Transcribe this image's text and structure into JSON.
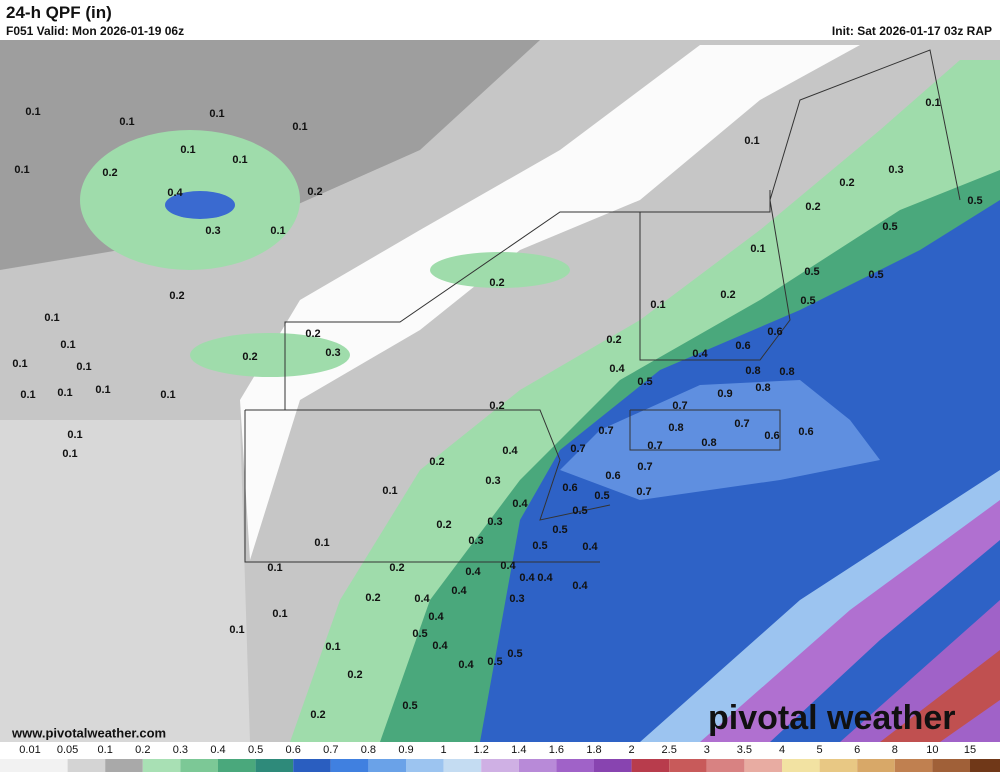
{
  "header": {
    "title": "24-h QPF (in)",
    "valid": "F051 Valid: Mon 2026-01-19 06z",
    "init": "Init: Sat 2026-01-17 03z RAP"
  },
  "website": "www.pivotalweather.com",
  "logo": "pivotal weather",
  "map_labels": [
    0.1,
    0.1,
    0.1,
    0.1,
    0.1,
    0.1,
    0.1,
    0.2,
    0.4,
    0.2,
    0.3,
    0.1,
    0.2,
    0.1,
    0.1,
    0.1,
    0.1,
    0.1,
    0.1,
    0.1,
    0.1,
    0.2,
    0.2,
    0.3,
    0.2,
    0.1,
    0.1,
    0.1,
    0.1,
    0.2,
    0.3,
    0.2,
    0.5,
    0.5,
    0.1,
    0.5,
    0.5,
    0.2,
    0.1,
    0.5,
    0.6,
    0.2,
    0.6,
    0.4,
    0.4,
    0.8,
    0.8,
    0.5,
    0.8,
    0.9,
    0.2,
    0.7,
    0.7,
    0.8,
    0.7,
    0.7,
    0.8,
    0.7,
    0.6,
    0.6,
    0.4,
    0.2,
    0.7,
    0.6,
    0.6,
    0.3,
    0.1,
    0.5,
    0.4,
    0.5,
    0.7,
    0.2,
    0.3,
    0.3,
    0.5,
    0.1,
    0.5,
    0.4,
    0.1,
    0.2,
    0.4,
    0.4,
    0.4,
    0.4,
    0.4,
    0.2,
    0.4,
    0.4,
    0.3,
    0.1,
    0.4,
    0.1,
    0.5,
    0.4,
    0.1,
    0.5,
    0.5,
    0.4,
    0.2,
    0.5,
    0.2
  ],
  "colorbar": {
    "ticks": [
      0.01,
      0.05,
      0.1,
      0.2,
      0.3,
      0.4,
      0.5,
      0.6,
      0.7,
      0.8,
      0.9,
      1,
      1.2,
      1.4,
      1.6,
      1.8,
      2,
      2.5,
      3,
      3.5,
      4,
      5,
      6,
      8,
      10,
      15
    ],
    "colors": [
      "#f2f2f2",
      "#d4d4d4",
      "#a9a9a9",
      "#a8e0b4",
      "#7cc896",
      "#4aa87c",
      "#2e8a7a",
      "#2a5ec0",
      "#4080e0",
      "#6aa2e8",
      "#9cc4f0",
      "#c4dcf2",
      "#cfb0e4",
      "#b88ad8",
      "#a062c8",
      "#8844b0",
      "#b83c4c",
      "#c85a5a",
      "#d88282",
      "#e8aca2",
      "#f2e2a2",
      "#e8c884",
      "#d8a868",
      "#c08050",
      "#a06038",
      "#703818"
    ]
  }
}
